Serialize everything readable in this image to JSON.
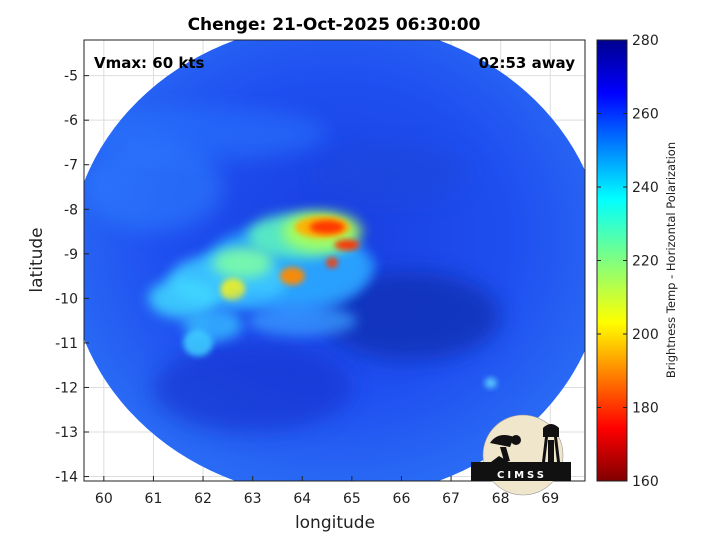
{
  "chart_data": {
    "type": "heatmap",
    "title": "Chenge: 21-Oct-2025 06:30:00",
    "annotations": {
      "vmax": "Vmax: 60 kts",
      "time_away": "02:53 away"
    },
    "xlabel": "longitude",
    "ylabel": "latitude",
    "xlim": [
      59.6,
      69.7
    ],
    "ylim": [
      -14.1,
      -4.2
    ],
    "x_ticks": [
      60,
      61,
      62,
      63,
      64,
      65,
      66,
      67,
      68,
      69
    ],
    "x_tick_labels": [
      "60",
      "61",
      "62",
      "63",
      "64",
      "65",
      "66",
      "67",
      "68",
      "69"
    ],
    "y_ticks": [
      -5,
      -6,
      -7,
      -8,
      -9,
      -10,
      -11,
      -12,
      -13,
      -14
    ],
    "y_tick_labels": [
      "-5",
      "-6",
      "-7",
      "-8",
      "-9",
      "-10",
      "-11",
      "-12",
      "-13",
      "-14"
    ],
    "grid": true,
    "colorbar": {
      "label": "Brightness Temp - Horizontal Polarization",
      "range": [
        160,
        280
      ],
      "ticks": [
        160,
        180,
        200,
        220,
        240,
        260,
        280
      ],
      "tick_labels": [
        "160",
        "180",
        "200",
        "220",
        "240",
        "260",
        "280"
      ],
      "colormap": "jet"
    },
    "swath": {
      "center_lon": 64.7,
      "center_lat": -9.15,
      "lon_radius": 5.4,
      "lat_radius": 5.35
    },
    "storm_center": {
      "lon": 64.6,
      "lat": -8.9
    },
    "logo": "CIMSS"
  }
}
